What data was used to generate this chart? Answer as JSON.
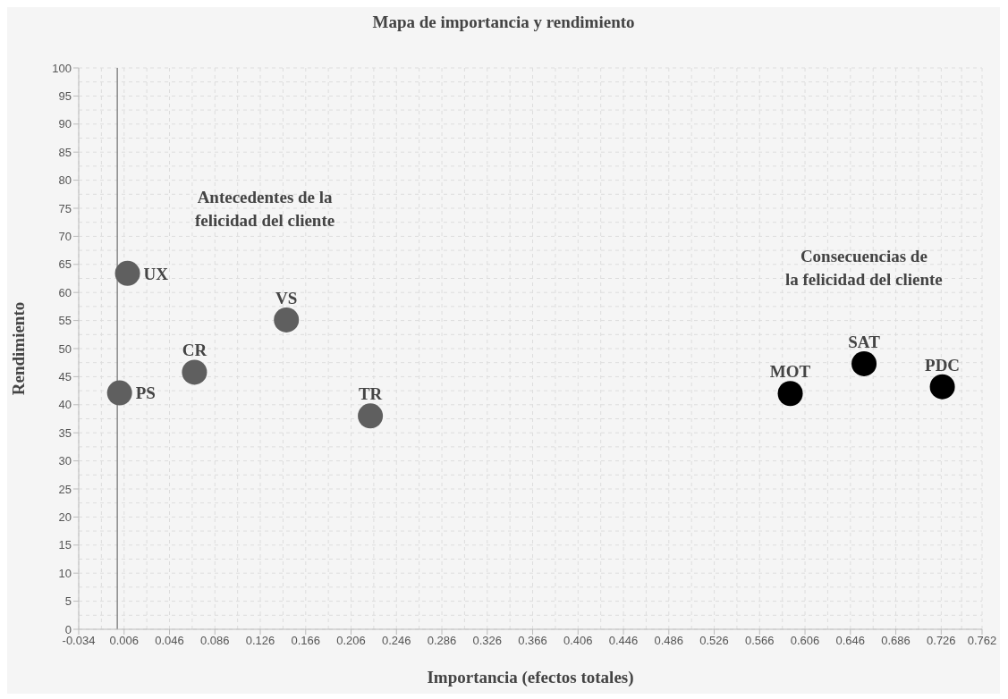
{
  "chart_data": {
    "type": "scatter",
    "title": "Mapa de importancia y rendimiento",
    "xlabel": "Importancia (efectos totales)",
    "ylabel": "Rendimiento",
    "series": [
      {
        "color": "#5f5f5f",
        "x": [
          0.009,
          0.002,
          0.068,
          0.149,
          0.223
        ],
        "values": [
          63.4,
          42.1,
          45.8,
          55.1,
          38.0
        ]
      },
      {
        "color": "#000000",
        "x": [
          0.593,
          0.658,
          0.727
        ],
        "values": [
          42.0,
          47.3,
          43.2
        ]
      }
    ],
    "annotations": [
      "Antecedentes de la\nfelicidad del cliente",
      "Consecuencias de\nla felicidad del cliente",
      {
        "text": "UX",
        "x": 0.009,
        "y": 63.4
      },
      {
        "text": "PS",
        "x": 0.002,
        "y": 42.1
      },
      {
        "text": "CR",
        "x": 0.068,
        "y": 45.8
      },
      {
        "text": "VS",
        "x": 0.149,
        "y": 55.1
      },
      {
        "text": "TR",
        "x": 0.223,
        "y": 38.0
      },
      {
        "text": "MOT",
        "x": 0.593,
        "y": 42.0
      },
      {
        "text": "SAT",
        "x": 0.658,
        "y": 47.3
      },
      {
        "text": "PDC",
        "x": 0.727,
        "y": 43.2
      }
    ],
    "ref_lines": [
      {
        "axis": "x",
        "value": 0,
        "color": "#888888"
      }
    ],
    "xlim": [
      -0.034,
      0.762
    ],
    "xticks": [
      -0.034,
      0.006,
      0.046,
      0.086,
      0.126,
      0.166,
      0.206,
      0.246,
      0.286,
      0.326,
      0.366,
      0.406,
      0.446,
      0.486,
      0.526,
      0.566,
      0.606,
      0.646,
      0.686,
      0.726,
      0.762
    ],
    "ylim": [
      0,
      100
    ],
    "yticks": [
      0,
      5,
      10,
      15,
      20,
      25,
      30,
      35,
      40,
      45,
      50,
      55,
      60,
      65,
      70,
      75,
      80,
      85,
      90,
      95,
      100
    ],
    "grid": true,
    "marker": "circle",
    "legend": false
  }
}
